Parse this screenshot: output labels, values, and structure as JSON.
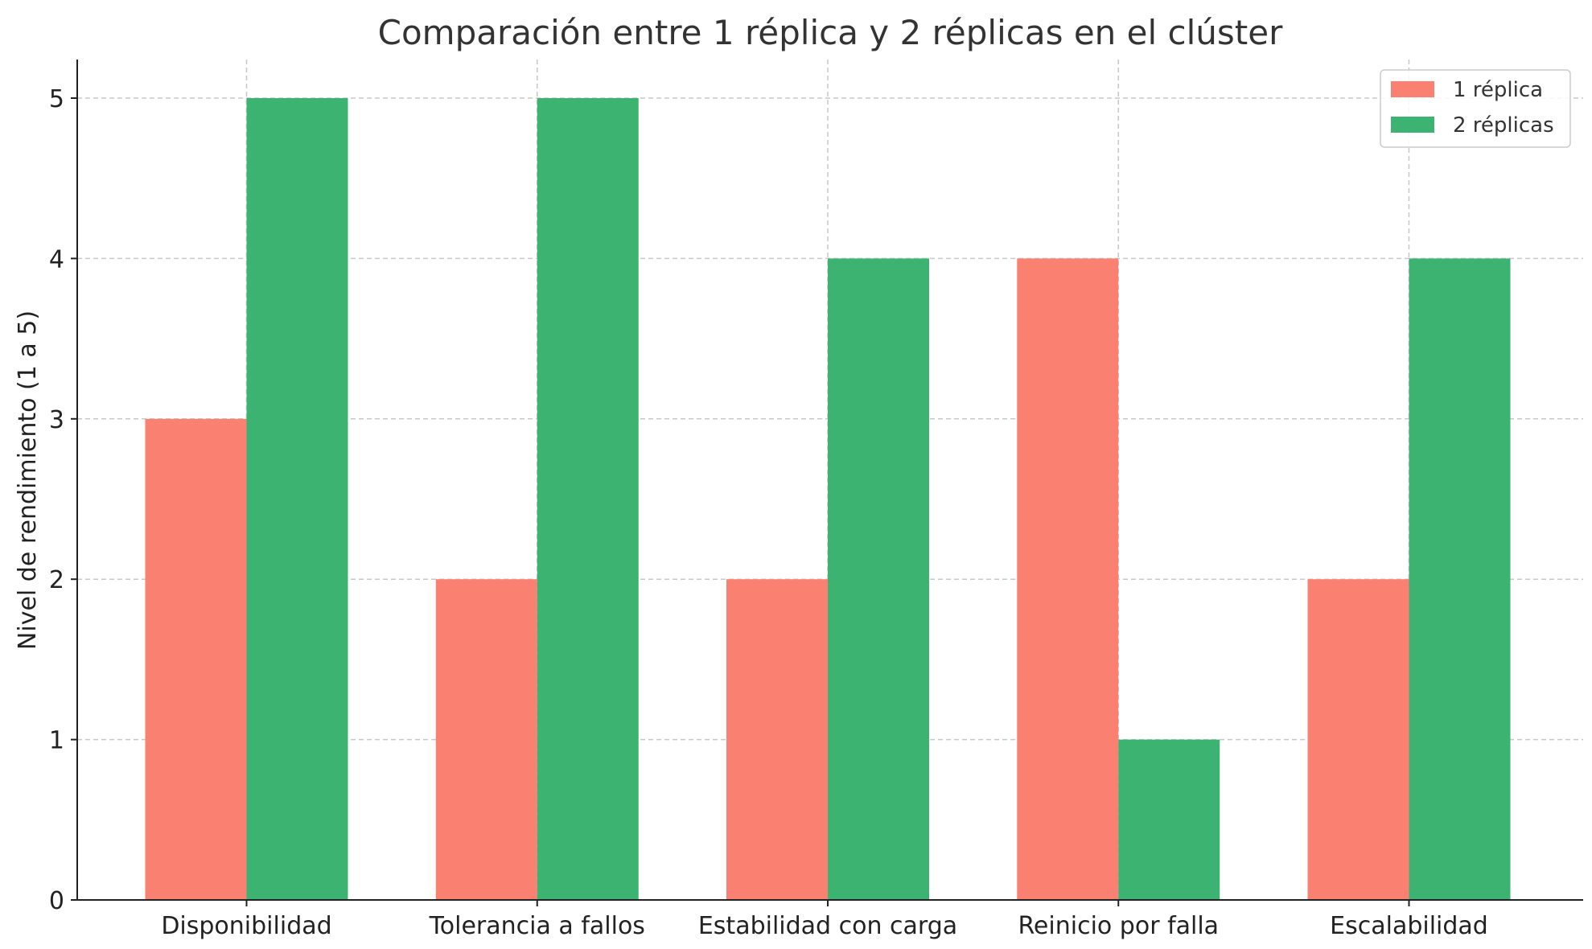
{
  "chart_data": {
    "type": "bar",
    "title": "Comparación entre 1 réplica y 2 réplicas en el clúster",
    "xlabel": "",
    "ylabel": "Nivel de rendimiento (1 a 5)",
    "categories": [
      "Disponibilidad",
      "Tolerancia a fallos",
      "Estabilidad con carga",
      "Reinicio por falla",
      "Escalabilidad"
    ],
    "series": [
      {
        "name": "1 réplica",
        "values": [
          3,
          2,
          2,
          4,
          2
        ],
        "color": "#fa8072"
      },
      {
        "name": "2 réplicas",
        "values": [
          5,
          5,
          4,
          1,
          4
        ],
        "color": "#3cb371"
      }
    ],
    "ylim": [
      0,
      5.25
    ],
    "yticks": [
      0,
      1,
      2,
      3,
      4,
      5
    ],
    "grid": true,
    "legend_position": "top-right"
  }
}
